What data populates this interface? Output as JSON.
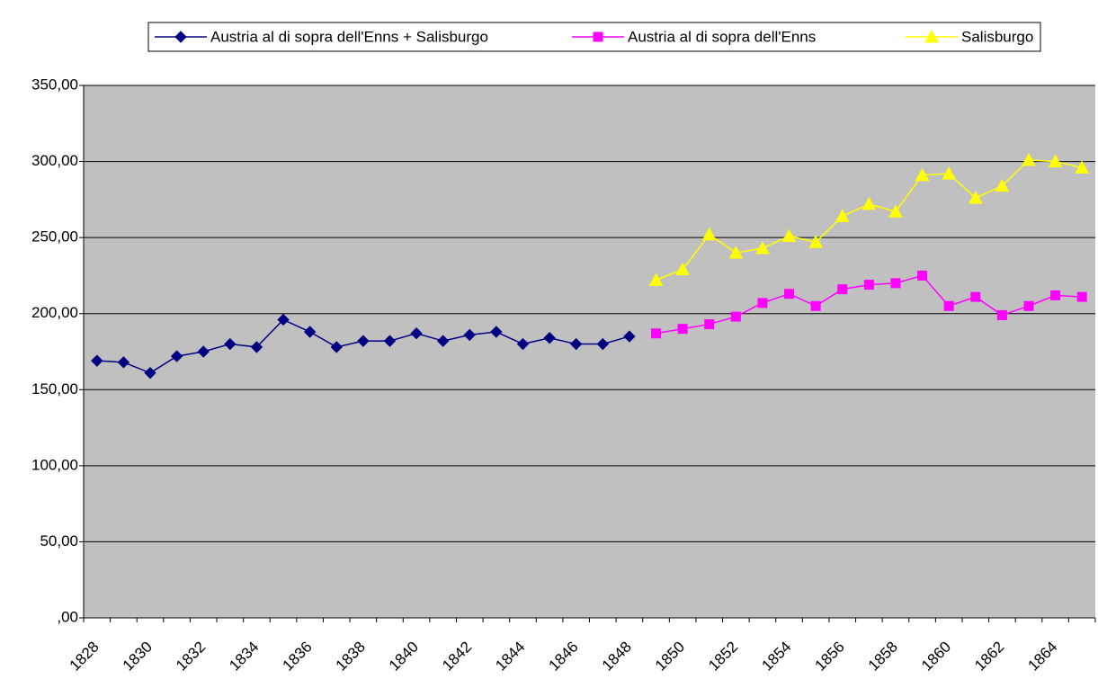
{
  "chart_data": {
    "type": "line",
    "categories": [
      "1828",
      null,
      "1830",
      null,
      "1832",
      null,
      "1834",
      null,
      "1836",
      null,
      "1838",
      null,
      "1840",
      null,
      "1842",
      null,
      "1844",
      null,
      "1846",
      null,
      "1848",
      null,
      "1850",
      null,
      "1852",
      null,
      "1854",
      null,
      "1856",
      null,
      "1858",
      null,
      "1860",
      null,
      "1862",
      null,
      "1864",
      null
    ],
    "series": [
      {
        "name": "Austria al di sopra dell'Enns + Salisburgo",
        "color": "#000080",
        "marker": "diamond",
        "values": [
          169,
          168,
          161,
          172,
          175,
          180,
          178,
          196,
          188,
          178,
          182,
          182,
          187,
          182,
          186,
          188,
          180,
          184,
          180,
          180,
          185,
          null,
          null,
          null,
          null,
          null,
          null,
          null,
          null,
          null,
          null,
          null,
          null,
          null,
          null,
          null,
          null,
          null
        ]
      },
      {
        "name": "Austria al di sopra dell'Enns",
        "color": "#FF00FF",
        "marker": "square",
        "values": [
          null,
          null,
          null,
          null,
          null,
          null,
          null,
          null,
          null,
          null,
          null,
          null,
          null,
          null,
          null,
          null,
          null,
          null,
          null,
          null,
          null,
          187,
          190,
          193,
          198,
          207,
          213,
          205,
          216,
          219,
          220,
          225,
          205,
          211,
          199,
          205,
          212,
          211
        ]
      },
      {
        "name": "Salisburgo",
        "color": "#FFFF00",
        "marker": "triangle",
        "values": [
          null,
          null,
          null,
          null,
          null,
          null,
          null,
          null,
          null,
          null,
          null,
          null,
          null,
          null,
          null,
          null,
          null,
          null,
          null,
          null,
          null,
          222,
          229,
          252,
          240,
          243,
          251,
          247,
          264,
          272,
          267,
          291,
          292,
          276,
          284,
          301,
          300,
          296
        ]
      }
    ],
    "ylim": [
      0,
      350
    ],
    "yticks": [
      {
        "value": 0,
        "label": ",00"
      },
      {
        "value": 50,
        "label": "50,00"
      },
      {
        "value": 100,
        "label": "100,00"
      },
      {
        "value": 150,
        "label": "150,00"
      },
      {
        "value": 200,
        "label": "200,00"
      },
      {
        "value": 250,
        "label": "250,00"
      },
      {
        "value": 300,
        "label": "300,00"
      },
      {
        "value": 350,
        "label": "350,00"
      }
    ],
    "grid": true,
    "plot_background": "#C0C0C0",
    "legend": "top"
  }
}
